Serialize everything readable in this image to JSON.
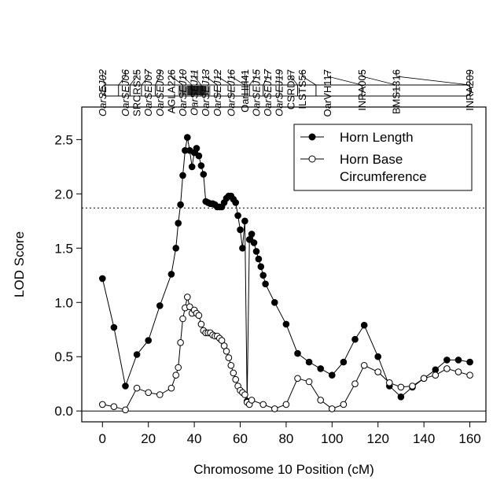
{
  "chart_data": {
    "type": "line",
    "xlabel": "Chromosome 10 Position (cM)",
    "ylabel": "LOD Score",
    "xlim": [
      -9,
      167
    ],
    "ylim": [
      -0.1,
      2.8
    ],
    "xticks": [
      0,
      20,
      40,
      60,
      80,
      100,
      120,
      140,
      160
    ],
    "xtick_labels": [
      "0",
      "20",
      "40",
      "60",
      "80",
      "100",
      "120",
      "140",
      "160"
    ],
    "yticks": [
      0.0,
      0.5,
      1.0,
      1.5,
      2.0,
      2.5
    ],
    "ytick_labels": [
      "0.0",
      "0.5",
      "1.0",
      "1.5",
      "2.0",
      "2.5"
    ],
    "threshold": 1.87,
    "threshold_style": "dotted",
    "zero_line": true,
    "legend_position": "top-right",
    "series": [
      {
        "name": "Horn Length",
        "marker": "filled-circle",
        "x": [
          0,
          5,
          10,
          15,
          20,
          25,
          30,
          32,
          33,
          34,
          35,
          36,
          37,
          38,
          39,
          40,
          41,
          42,
          43,
          44,
          45,
          46,
          47,
          48,
          49,
          50,
          51,
          52,
          53,
          54,
          55,
          56,
          57,
          58,
          59,
          60,
          61,
          62,
          63,
          64,
          65,
          66,
          67,
          68,
          69,
          70,
          71,
          75,
          80,
          85,
          90,
          95,
          100,
          105,
          110,
          114,
          120,
          125,
          130,
          135,
          140,
          145,
          150,
          155,
          160
        ],
        "y": [
          1.22,
          0.77,
          0.23,
          0.52,
          0.65,
          0.97,
          1.26,
          1.5,
          1.73,
          1.9,
          2.17,
          2.4,
          2.52,
          2.4,
          2.25,
          2.38,
          2.42,
          2.35,
          2.26,
          2.18,
          1.93,
          1.92,
          1.91,
          1.91,
          1.9,
          1.88,
          1.88,
          1.88,
          1.92,
          1.96,
          1.98,
          1.98,
          1.95,
          1.92,
          1.8,
          1.67,
          1.5,
          1.75,
          0.09,
          1.58,
          1.63,
          1.55,
          1.47,
          1.4,
          1.33,
          1.25,
          1.17,
          1.0,
          0.8,
          0.53,
          0.45,
          0.39,
          0.33,
          0.45,
          0.66,
          0.79,
          0.5,
          0.23,
          0.13,
          0.22,
          0.3,
          0.38,
          0.47,
          0.47,
          0.45
        ]
      },
      {
        "name": "Horn Base Circumference",
        "marker": "open-circle",
        "x": [
          0,
          5,
          10,
          15,
          20,
          25,
          30,
          32,
          33,
          34,
          35,
          36,
          37,
          38,
          39,
          40,
          41,
          42,
          43,
          44,
          45,
          46,
          47,
          48,
          49,
          50,
          51,
          52,
          53,
          54,
          55,
          56,
          57,
          58,
          59,
          60,
          61,
          62,
          63,
          64,
          65,
          70,
          75,
          80,
          85,
          90,
          95,
          100,
          105,
          110,
          114,
          120,
          125,
          130,
          135,
          140,
          145,
          150,
          155,
          160
        ],
        "y": [
          0.06,
          0.04,
          0.01,
          0.21,
          0.17,
          0.15,
          0.21,
          0.33,
          0.4,
          0.63,
          0.85,
          0.95,
          1.05,
          0.96,
          0.9,
          0.93,
          0.9,
          0.88,
          0.8,
          0.74,
          0.72,
          0.72,
          0.72,
          0.7,
          0.69,
          0.69,
          0.67,
          0.65,
          0.6,
          0.55,
          0.49,
          0.42,
          0.35,
          0.29,
          0.23,
          0.19,
          0.17,
          0.15,
          0.08,
          0.06,
          0.1,
          0.06,
          0.02,
          0.06,
          0.3,
          0.27,
          0.1,
          0.02,
          0.06,
          0.25,
          0.42,
          0.36,
          0.26,
          0.22,
          0.23,
          0.3,
          0.33,
          0.39,
          0.36,
          0.33
        ]
      }
    ],
    "markers_track": {
      "ticks_cM": [
        1,
        7,
        12,
        17,
        23,
        35,
        39,
        43,
        50,
        56,
        62,
        63,
        64,
        70,
        77,
        85,
        93,
        113,
        128,
        160
      ],
      "shaded_region_cM": [
        33,
        47
      ],
      "dark_region_cM": [
        37,
        45
      ],
      "labels": [
        {
          "text": "OarSEJ02",
          "cM": 0,
          "italic": true
        },
        {
          "text": "OarSEJ06",
          "cM": 10,
          "italic": true
        },
        {
          "text": "SRCRS25",
          "cM": 15,
          "italic": false
        },
        {
          "text": "OarSEJ07",
          "cM": 20,
          "italic": true
        },
        {
          "text": "OarSEJ09",
          "cM": 25,
          "italic": true
        },
        {
          "text": "AGLA226",
          "cM": 30,
          "italic": false
        },
        {
          "text": "OarSEJ10",
          "cM": 35,
          "italic": true
        },
        {
          "text": "OarSEJ11",
          "cM": 40,
          "italic": true
        },
        {
          "text": "OarSEJ13",
          "cM": 45,
          "italic": true
        },
        {
          "text": "OarSEJ12",
          "cM": 50,
          "italic": true
        },
        {
          "text": "OarSEJ16",
          "cM": 56,
          "italic": true
        },
        {
          "text": "OarHH41",
          "cM": 62,
          "italic": false
        },
        {
          "text": "OarSEJ15",
          "cM": 67,
          "italic": true
        },
        {
          "text": "OarSEJ17",
          "cM": 72,
          "italic": true
        },
        {
          "text": "OarSEJ19",
          "cM": 77,
          "italic": true
        },
        {
          "text": "CSRD87",
          "cM": 82,
          "italic": false
        },
        {
          "text": "ILSTS56",
          "cM": 87,
          "italic": false
        },
        {
          "text": "OarVH117",
          "cM": 98,
          "italic": false
        },
        {
          "text": "INRA005",
          "cM": 113,
          "italic": false
        },
        {
          "text": "BMS1316",
          "cM": 128,
          "italic": false
        },
        {
          "text": "INRA209",
          "cM": 160,
          "italic": false
        }
      ]
    }
  }
}
